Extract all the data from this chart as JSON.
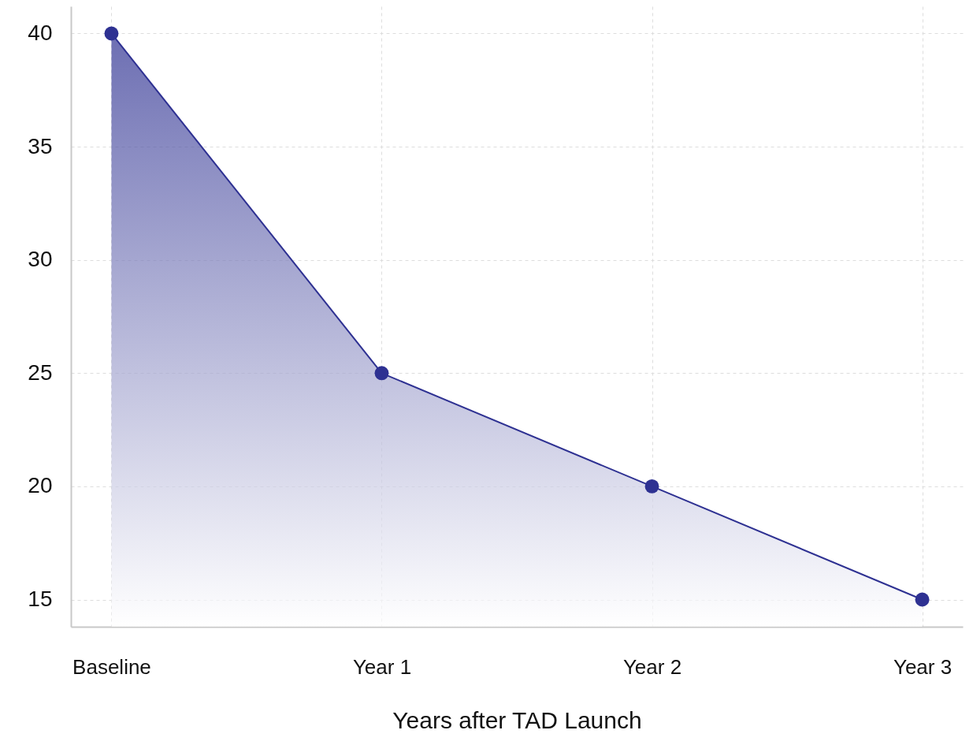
{
  "chart_data": {
    "type": "area",
    "xlabel": "Years after TAD Launch",
    "categories": [
      "Baseline",
      "Year 1",
      "Year 2",
      "Year 3"
    ],
    "series": [
      {
        "color": "#2e3192",
        "values": [
          40,
          25,
          20,
          15
        ]
      }
    ],
    "ylim": [
      13.8,
      41.2
    ],
    "yticks": [
      15,
      20,
      25,
      30,
      35,
      40
    ],
    "grid": true,
    "marker": "circle"
  }
}
